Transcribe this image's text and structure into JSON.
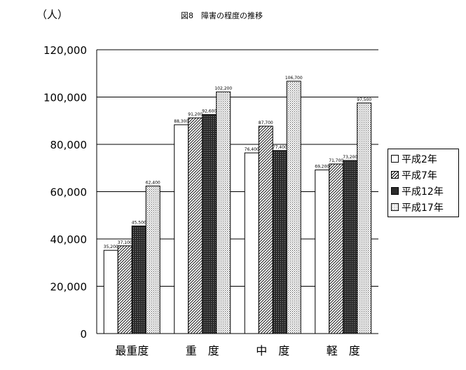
{
  "unit_label": "（人）",
  "chart_data": {
    "type": "bar",
    "title": "図8　障害の程度の推移",
    "categories": [
      "最重度",
      "重　度",
      "中　度",
      "軽　度"
    ],
    "ylim": [
      0,
      120000
    ],
    "yticks": [
      "0",
      "20,000",
      "40,000",
      "60,000",
      "80,000",
      "100,000",
      "120,000"
    ],
    "grid": true,
    "legend_position": "right",
    "series": [
      {
        "name": "平成2年",
        "pattern": "blank",
        "values": [
          35200,
          88300,
          76400,
          69200
        ],
        "labels": [
          "35,200",
          "88,300",
          "76,400",
          "69,200"
        ]
      },
      {
        "name": "平成7年",
        "pattern": "diagonal",
        "values": [
          37100,
          91200,
          87700,
          71700
        ],
        "labels": [
          "37,100",
          "91,200",
          "87,700",
          "71,700"
        ]
      },
      {
        "name": "平成12年",
        "pattern": "dark",
        "values": [
          45500,
          92600,
          77400,
          73200
        ],
        "labels": [
          "45,500",
          "92,600",
          "77,400",
          "73,200"
        ]
      },
      {
        "name": "平成17年",
        "pattern": "dots",
        "values": [
          62400,
          102200,
          106700,
          97500
        ],
        "labels": [
          "62,400",
          "102,200",
          "106,700",
          "97,500"
        ]
      }
    ]
  }
}
